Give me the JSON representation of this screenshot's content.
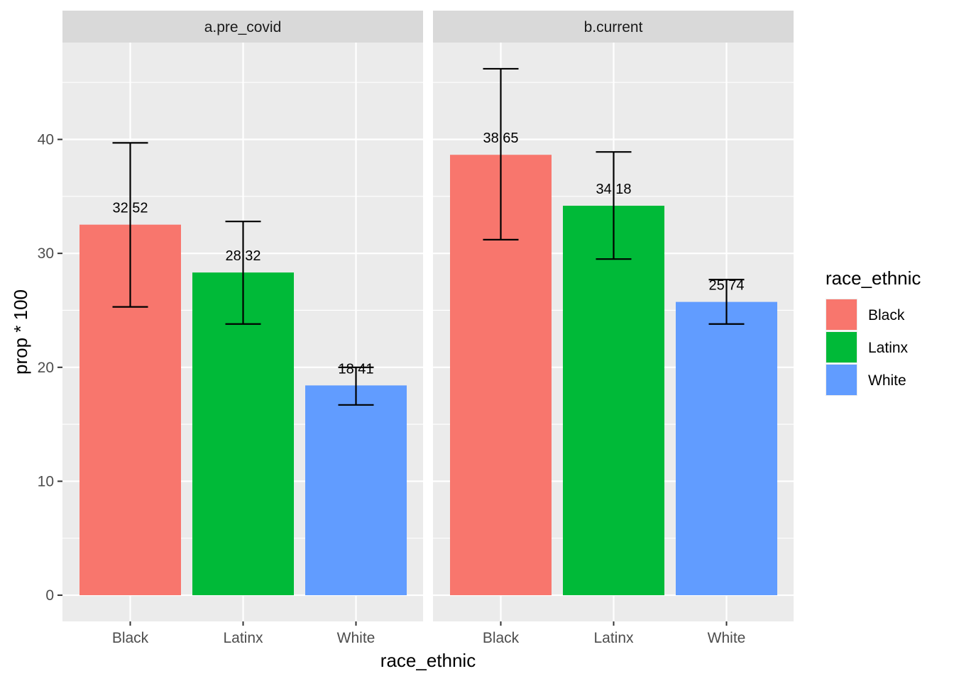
{
  "chart_data": {
    "type": "bar",
    "facets": [
      {
        "strip": "a.pre_covid",
        "categories": [
          "Black",
          "Latinx",
          "White"
        ],
        "values": [
          32.52,
          28.32,
          18.41
        ],
        "labels": [
          "32.52",
          "28.32",
          "18.41"
        ],
        "error_low": [
          25.3,
          23.8,
          16.7
        ],
        "error_high": [
          39.7,
          32.8,
          20.0
        ]
      },
      {
        "strip": "b.current",
        "categories": [
          "Black",
          "Latinx",
          "White"
        ],
        "values": [
          38.65,
          34.18,
          25.74
        ],
        "labels": [
          "38.65",
          "34.18",
          "25.74"
        ],
        "error_low": [
          31.2,
          29.5,
          23.8
        ],
        "error_high": [
          46.2,
          38.9,
          27.7
        ]
      }
    ],
    "xlabel": "race_ethnic",
    "ylabel": "prop * 100",
    "ylim": [
      -2.3,
      48.5
    ],
    "yticks": [
      0,
      10,
      20,
      30,
      40
    ],
    "ytick_labels": [
      "0",
      "10",
      "20",
      "30",
      "40"
    ],
    "grid": true,
    "legend": {
      "title": "race_ethnic",
      "position": "right",
      "entries": [
        "Black",
        "Latinx",
        "White"
      ]
    },
    "colors": {
      "Black": "#F8766D",
      "Latinx": "#00BA38",
      "White": "#619CFF",
      "panel_background": "#EBEBEB",
      "strip_background": "#D9D9D9",
      "grid": "#FFFFFF"
    }
  }
}
